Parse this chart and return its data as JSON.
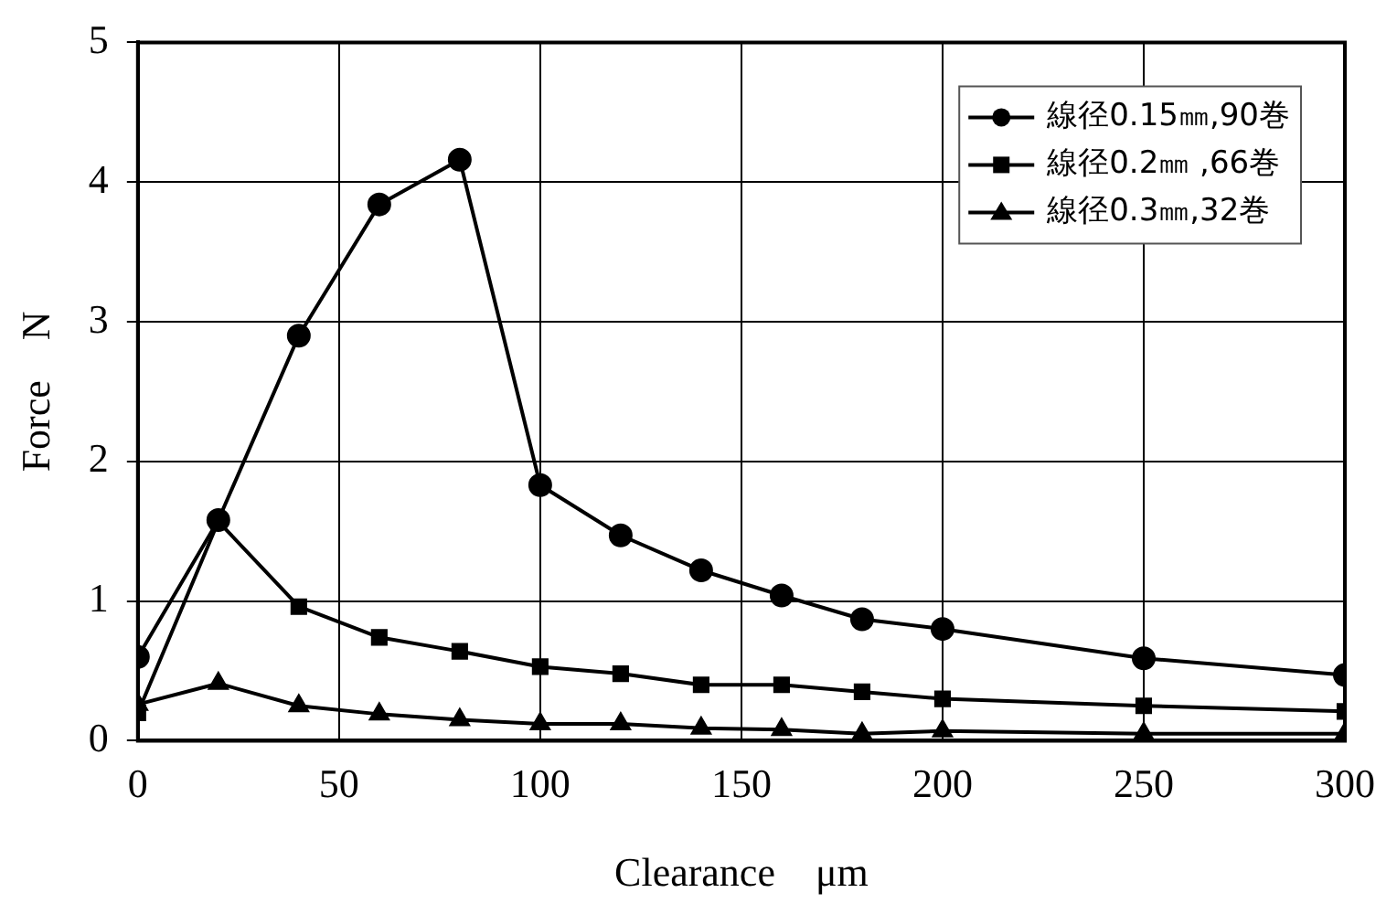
{
  "chart_data": {
    "type": "line",
    "xlabel": "Clearance　μm",
    "ylabel": "Force　N",
    "x": [
      0,
      20,
      40,
      60,
      80,
      100,
      120,
      140,
      160,
      180,
      200,
      250,
      300
    ],
    "series": [
      {
        "name": "線径0.15㎜,90巻",
        "color": "#000000",
        "marker": "circle",
        "values": [
          0.6,
          1.58,
          2.9,
          3.84,
          4.16,
          1.83,
          1.47,
          1.22,
          1.04,
          0.87,
          0.8,
          0.59,
          0.47
        ]
      },
      {
        "name": "線径0.2㎜ ,66巻",
        "color": "#000000",
        "marker": "square",
        "values": [
          0.2,
          1.57,
          0.96,
          0.74,
          0.64,
          0.53,
          0.48,
          0.4,
          0.4,
          0.35,
          0.3,
          0.25,
          0.21
        ]
      },
      {
        "name": "線径0.3㎜,32巻",
        "color": "#000000",
        "marker": "triangle",
        "values": [
          0.26,
          0.41,
          0.25,
          0.19,
          0.15,
          0.12,
          0.12,
          0.09,
          0.08,
          0.05,
          0.07,
          0.05,
          0.05
        ]
      }
    ],
    "xlim": [
      0,
      300
    ],
    "xticks": [
      0,
      50,
      100,
      150,
      200,
      250,
      300
    ],
    "ylim": [
      0,
      5
    ],
    "yticks": [
      0,
      1,
      2,
      3,
      4,
      5
    ],
    "grid": true,
    "legend": "top right",
    "line_style": "solid"
  }
}
